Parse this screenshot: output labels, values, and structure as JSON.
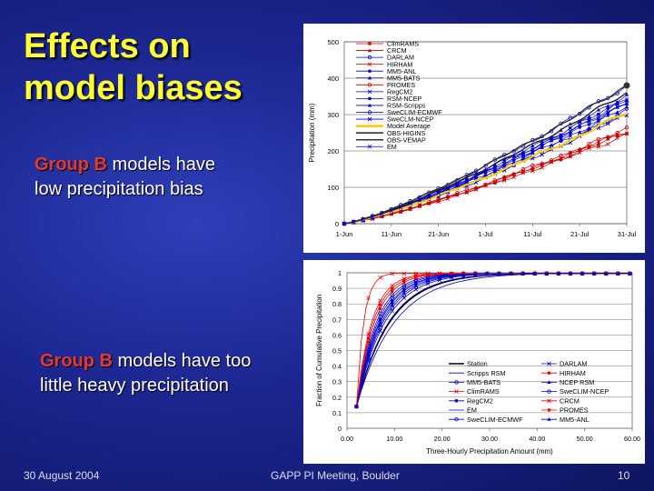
{
  "slide": {
    "title_line1": "Effects on",
    "title_line2": "model biases",
    "bullet1": {
      "highlight": "Group B",
      "text_line1": " models have",
      "text_line2": "low precipitation bias"
    },
    "bullet2": {
      "highlight": "Group B",
      "text_line1": " models have too",
      "text_line2": "little heavy precipitation"
    },
    "footer": {
      "date": "30 August 2004",
      "event": "GAPP PI Meeting, Boulder",
      "page": "10"
    }
  },
  "chart_data": [
    {
      "type": "line",
      "title": "",
      "xlabel": "",
      "ylabel": "Precipitation (mm)",
      "x_ticks": [
        "1-Jun",
        "11-Jun",
        "21-Jun",
        "1-Jul",
        "11-Jul",
        "21-Jul",
        "31-Jul"
      ],
      "ylim": [
        0,
        500
      ],
      "y_ticks": [
        "0",
        "100",
        "200",
        "300",
        "400",
        "500"
      ],
      "legend": [
        "ClimRAMS",
        "CRCM",
        "DARLAM",
        "HIRHAM",
        "MM5-ANL",
        "MM5-BATS",
        "PROMES",
        "RegCM2",
        "RSM-NCEP",
        "RSM-Scripps",
        "SweCLIM-ECMWF",
        "SweCLM-NCEP",
        "Model Average",
        "OBS-HIGINS",
        "OBS-VEMAP",
        "EM"
      ],
      "series": [
        {
          "name": "ClimRAMS",
          "color": "#cc0000",
          "final": 250
        },
        {
          "name": "CRCM",
          "color": "#cc0000",
          "final": 255
        },
        {
          "name": "DARLAM",
          "color": "#0000cc",
          "final": 380
        },
        {
          "name": "HIRHAM",
          "color": "#cc0000",
          "final": 245
        },
        {
          "name": "MM5-ANL",
          "color": "#0000cc",
          "final": 330
        },
        {
          "name": "MM5-BATS",
          "color": "#0000cc",
          "final": 320
        },
        {
          "name": "PROMES",
          "color": "#cc0000",
          "final": 260
        },
        {
          "name": "RegCM2",
          "color": "#0000cc",
          "final": 300
        },
        {
          "name": "RSM-NCEP",
          "color": "#0000cc",
          "final": 345
        },
        {
          "name": "RSM-Scripps",
          "color": "#0000cc",
          "final": 355
        },
        {
          "name": "SweCLIM-ECMWF",
          "color": "#0000cc",
          "final": 310
        },
        {
          "name": "SweCLM-NCEP",
          "color": "#0000cc",
          "final": 340
        },
        {
          "name": "Model Average",
          "color": "#ffcc00",
          "final": 305
        },
        {
          "name": "OBS-HIGINS",
          "color": "#222222",
          "final": 360
        },
        {
          "name": "OBS-VEMAP",
          "color": "#333333",
          "final": 380
        },
        {
          "name": "EM",
          "color": "#0000cc",
          "final": 335
        }
      ]
    },
    {
      "type": "line",
      "title": "",
      "xlabel": "Three-Hourly Precipitation Amount (mm)",
      "ylabel": "Fraction of Cumulative Precipitation",
      "xlim": [
        0,
        60
      ],
      "x_ticks": [
        "0.00",
        "10.00",
        "20.00",
        "30.00",
        "40.00",
        "50.00",
        "60.00"
      ],
      "ylim": [
        0,
        1
      ],
      "y_ticks": [
        "0",
        "0.1",
        "0.2",
        "0.3",
        "0.4",
        "0.5",
        "0.6",
        "0.7",
        "0.8",
        "0.9",
        "1"
      ],
      "legend": [
        "Station",
        "Scripps RSM",
        "MM5-BATS",
        "ClimRAMS",
        "RegCM2",
        "EM",
        "SweCLIM-ECMWF",
        "DARLAM",
        "HIRHAM",
        "NCEP RSM",
        "SweCLIM-NCEP",
        "CRCM",
        "PROMES",
        "MM5-ANL"
      ],
      "series": [
        {
          "name": "Station",
          "color": "#000000",
          "k": 7.0
        },
        {
          "name": "Scripps RSM",
          "color": "#0000cc",
          "k": 6.8
        },
        {
          "name": "MM5-BATS",
          "color": "#0000cc",
          "k": 5.6
        },
        {
          "name": "ClimRAMS",
          "color": "#ee0000",
          "k": 1.5
        },
        {
          "name": "RegCM2",
          "color": "#0000cc",
          "k": 4.8
        },
        {
          "name": "EM",
          "color": "#0000cc",
          "k": 8.0
        },
        {
          "name": "SweCLIM-ECMWF",
          "color": "#0000cc",
          "k": 4.2
        },
        {
          "name": "DARLAM",
          "color": "#0000cc",
          "k": 6.0
        },
        {
          "name": "HIRHAM",
          "color": "#ee0000",
          "k": 3.8
        },
        {
          "name": "NCEP RSM",
          "color": "#0000cc",
          "k": 5.0
        },
        {
          "name": "SweCLIM-NCEP",
          "color": "#0000cc",
          "k": 4.5
        },
        {
          "name": "CRCM",
          "color": "#ee0000",
          "k": 3.2
        },
        {
          "name": "PROMES",
          "color": "#ee0000",
          "k": 3.5
        },
        {
          "name": "MM5-ANL",
          "color": "#0000cc",
          "k": 5.3
        }
      ]
    }
  ]
}
